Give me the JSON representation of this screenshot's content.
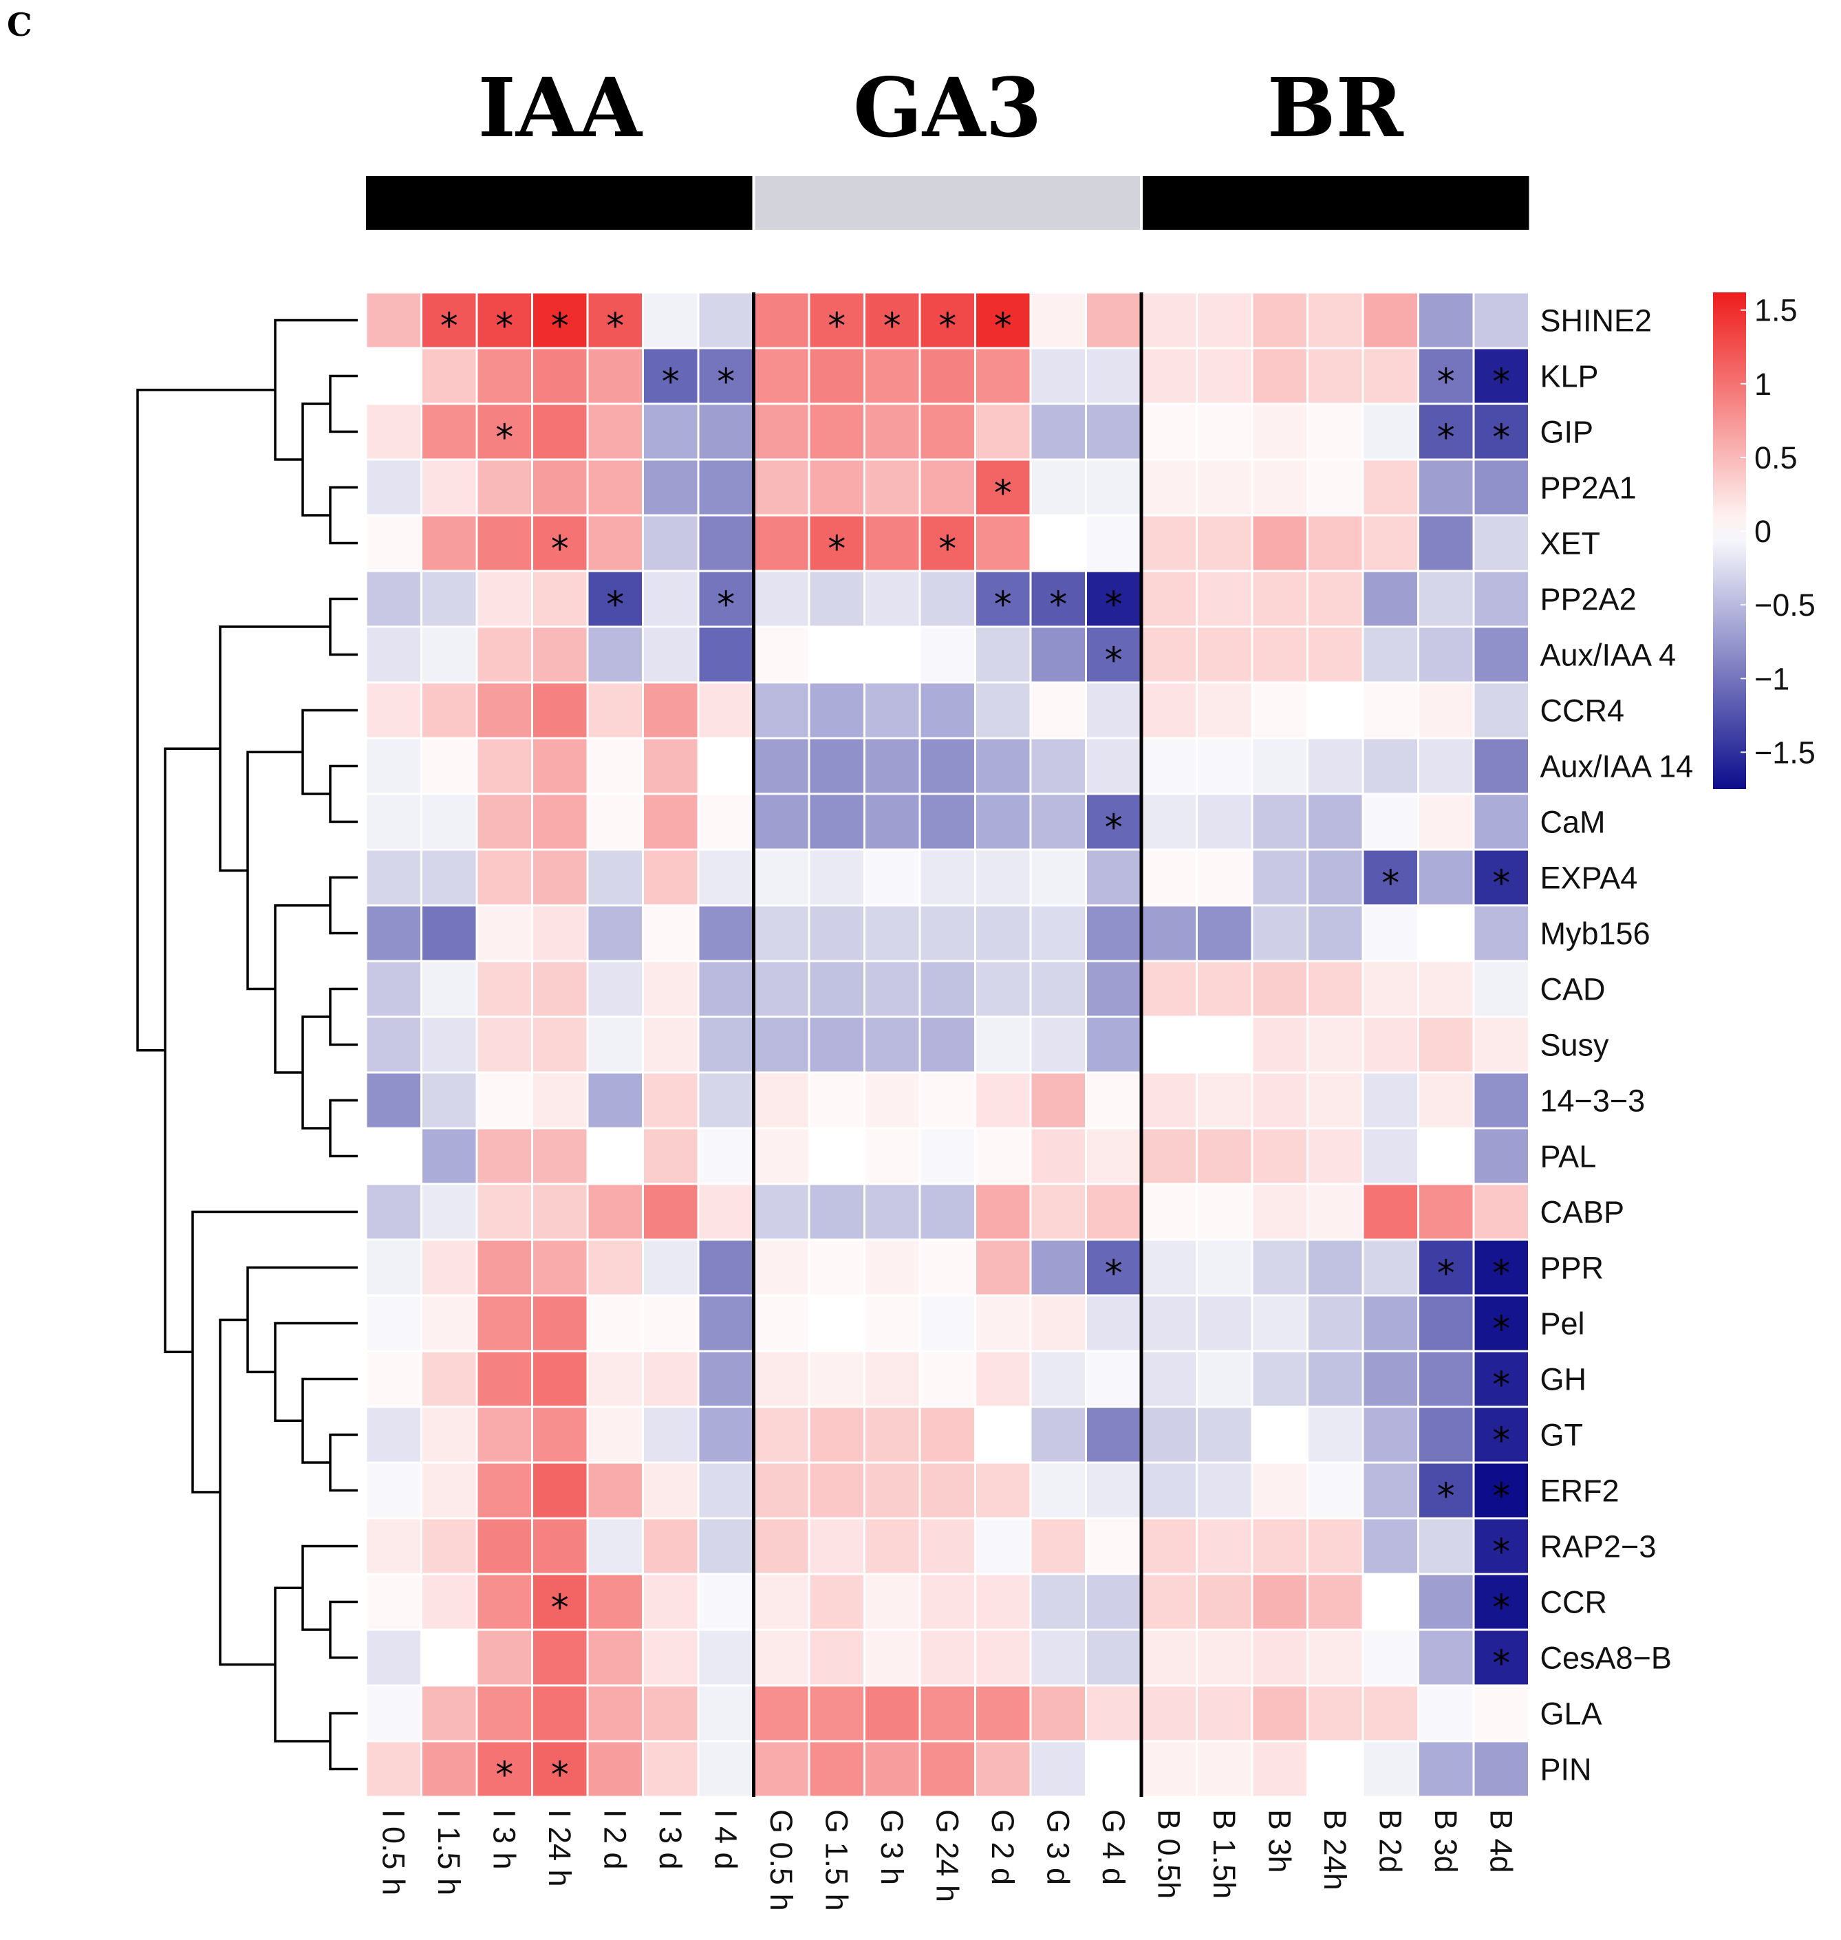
{
  "panel_label": "C",
  "chart_data": {
    "type": "heatmap",
    "title": "",
    "groups": [
      {
        "name": "IAA",
        "color": "#000000",
        "columns": 7
      },
      {
        "name": "GA3",
        "color": "#d3d3dc",
        "columns": 7
      },
      {
        "name": "BR",
        "color": "#000000",
        "columns": 7
      }
    ],
    "columns": [
      "I 0.5 h",
      "I 1.5 h",
      "I 3 h",
      "I 24 h",
      "I 2 d",
      "I 3 d",
      "I 4 d",
      "G 0.5 h",
      "G 1.5 h",
      "G 3 h",
      "G 24 h",
      "G 2 d",
      "G 3 d",
      "G 4 d",
      "B 0.5h",
      "B 1.5h",
      "B 3h",
      "B 24h",
      "B 2d",
      "B 3d",
      "B 4d"
    ],
    "rows": [
      "SHINE2",
      "KLP",
      "GIP",
      "PP2A1",
      "XET",
      "PP2A2",
      "Aux/IAA 4",
      "CCR4",
      "Aux/IAA 14",
      "CaM",
      "EXPA4",
      "Myb156",
      "CAD",
      "Susy",
      "14−3−3",
      "PAL",
      "CABP",
      "PPR",
      "Pel",
      "GH",
      "GT",
      "ERF2",
      "RAP2−3",
      "CCR",
      "CesA8−B",
      "GLA",
      "PIN"
    ],
    "values": [
      [
        0.5,
        1.2,
        1.3,
        1.5,
        1.2,
        -0.1,
        -0.3,
        0.9,
        1.1,
        1.2,
        1.3,
        1.5,
        0.1,
        0.5,
        0.2,
        0.2,
        0.4,
        0.3,
        0.6,
        -0.7,
        -0.4
      ],
      [
        0.0,
        0.4,
        0.8,
        0.9,
        0.7,
        -1.1,
        -1.0,
        0.8,
        0.9,
        0.8,
        0.9,
        0.8,
        -0.2,
        -0.2,
        0.2,
        0.2,
        0.4,
        0.3,
        0.3,
        -1.0,
        -1.6
      ],
      [
        0.2,
        0.8,
        0.9,
        1.0,
        0.6,
        -0.6,
        -0.7,
        0.7,
        0.8,
        0.7,
        0.8,
        0.4,
        -0.5,
        -0.5,
        0.05,
        0.05,
        0.1,
        0.05,
        -0.1,
        -1.2,
        -1.3
      ],
      [
        -0.2,
        0.2,
        0.5,
        0.7,
        0.6,
        -0.7,
        -0.8,
        0.5,
        0.6,
        0.5,
        0.6,
        1.1,
        -0.1,
        -0.1,
        0.1,
        0.1,
        0.1,
        0.05,
        0.3,
        -0.7,
        -0.8
      ],
      [
        0.05,
        0.7,
        0.9,
        1.0,
        0.6,
        -0.4,
        -0.9,
        0.9,
        1.1,
        0.9,
        1.1,
        0.8,
        0.0,
        -0.05,
        0.3,
        0.3,
        0.6,
        0.4,
        0.3,
        -0.9,
        -0.3
      ],
      [
        -0.4,
        -0.3,
        0.2,
        0.3,
        -1.3,
        -0.2,
        -1.0,
        -0.2,
        -0.3,
        -0.2,
        -0.3,
        -1.1,
        -1.2,
        -1.6,
        0.3,
        0.25,
        0.3,
        0.3,
        -0.7,
        -0.3,
        -0.5
      ],
      [
        -0.2,
        -0.1,
        0.4,
        0.5,
        -0.5,
        -0.2,
        -1.1,
        0.05,
        0.0,
        0.0,
        -0.05,
        -0.3,
        -0.8,
        -1.1,
        0.3,
        0.3,
        0.3,
        0.3,
        -0.3,
        -0.4,
        -0.8
      ],
      [
        0.2,
        0.4,
        0.7,
        0.9,
        0.3,
        0.7,
        0.2,
        -0.5,
        -0.6,
        -0.5,
        -0.6,
        -0.3,
        0.05,
        -0.2,
        0.2,
        0.15,
        0.05,
        0.0,
        0.05,
        0.1,
        -0.3
      ],
      [
        -0.1,
        0.05,
        0.4,
        0.6,
        0.05,
        0.5,
        0.0,
        -0.7,
        -0.8,
        -0.7,
        -0.8,
        -0.6,
        -0.4,
        -0.2,
        -0.05,
        -0.05,
        -0.1,
        -0.2,
        -0.3,
        -0.2,
        -0.9
      ],
      [
        -0.1,
        -0.1,
        0.5,
        0.6,
        0.05,
        0.6,
        0.05,
        -0.7,
        -0.8,
        -0.7,
        -0.8,
        -0.6,
        -0.5,
        -1.1,
        -0.15,
        -0.2,
        -0.4,
        -0.5,
        -0.05,
        0.1,
        -0.6
      ],
      [
        -0.3,
        -0.3,
        0.4,
        0.5,
        -0.3,
        0.4,
        -0.15,
        -0.1,
        -0.15,
        -0.05,
        -0.15,
        -0.15,
        -0.1,
        -0.5,
        0.05,
        0.05,
        -0.4,
        -0.5,
        -1.2,
        -0.6,
        -1.5
      ],
      [
        -0.8,
        -1.0,
        0.1,
        0.2,
        -0.5,
        0.05,
        -0.8,
        -0.3,
        -0.35,
        -0.3,
        -0.3,
        -0.3,
        -0.25,
        -0.8,
        -0.7,
        -0.8,
        -0.35,
        -0.45,
        -0.05,
        0.0,
        -0.5
      ],
      [
        -0.4,
        -0.1,
        0.3,
        0.35,
        -0.2,
        0.15,
        -0.5,
        -0.4,
        -0.45,
        -0.4,
        -0.45,
        -0.3,
        -0.3,
        -0.7,
        0.3,
        0.3,
        0.35,
        0.3,
        0.15,
        0.15,
        -0.1
      ],
      [
        -0.4,
        -0.2,
        0.25,
        0.3,
        -0.1,
        0.15,
        -0.45,
        -0.5,
        -0.55,
        -0.5,
        -0.55,
        -0.1,
        -0.2,
        -0.6,
        0.0,
        0.0,
        0.2,
        0.15,
        0.2,
        0.3,
        0.15
      ],
      [
        -0.8,
        -0.3,
        0.05,
        0.15,
        -0.6,
        0.3,
        -0.3,
        0.15,
        0.05,
        0.1,
        0.05,
        0.2,
        0.5,
        0.05,
        0.2,
        0.15,
        0.2,
        0.15,
        -0.2,
        0.15,
        -0.8
      ],
      [
        0.0,
        -0.6,
        0.5,
        0.5,
        0.0,
        0.35,
        -0.05,
        0.1,
        0.0,
        0.05,
        -0.05,
        0.05,
        0.25,
        0.15,
        0.35,
        0.35,
        0.3,
        0.2,
        -0.2,
        0.0,
        -0.7
      ],
      [
        -0.4,
        -0.15,
        0.3,
        0.35,
        0.6,
        0.9,
        0.2,
        -0.35,
        -0.45,
        -0.4,
        -0.45,
        0.6,
        0.3,
        0.4,
        0.05,
        0.05,
        0.15,
        0.1,
        1.0,
        0.8,
        0.4
      ],
      [
        -0.1,
        0.2,
        0.7,
        0.6,
        0.3,
        -0.15,
        -0.9,
        0.1,
        0.05,
        0.1,
        0.05,
        0.5,
        -0.7,
        -1.1,
        -0.15,
        -0.1,
        -0.3,
        -0.45,
        -0.3,
        -1.4,
        -1.7
      ],
      [
        -0.05,
        0.1,
        0.8,
        0.9,
        0.05,
        0.05,
        -0.8,
        0.05,
        0.0,
        0.05,
        -0.05,
        0.1,
        0.15,
        -0.2,
        -0.2,
        -0.2,
        -0.15,
        -0.35,
        -0.6,
        -1.0,
        -1.7
      ],
      [
        0.05,
        0.3,
        0.9,
        1.0,
        0.15,
        0.2,
        -0.7,
        0.15,
        0.1,
        0.15,
        0.05,
        0.2,
        -0.15,
        -0.05,
        -0.2,
        -0.1,
        -0.3,
        -0.45,
        -0.7,
        -0.9,
        -1.6
      ],
      [
        -0.2,
        0.15,
        0.6,
        0.8,
        0.1,
        -0.2,
        -0.6,
        0.3,
        0.4,
        0.35,
        0.4,
        0.0,
        -0.4,
        -0.9,
        -0.35,
        -0.3,
        0.0,
        -0.15,
        -0.55,
        -1.0,
        -1.6
      ],
      [
        -0.05,
        0.15,
        0.8,
        1.1,
        0.6,
        0.15,
        -0.25,
        0.35,
        0.4,
        0.35,
        0.35,
        0.3,
        -0.1,
        -0.15,
        -0.25,
        -0.2,
        0.1,
        -0.05,
        -0.5,
        -1.3,
        -1.9
      ],
      [
        0.15,
        0.3,
        0.9,
        0.9,
        -0.15,
        0.4,
        -0.3,
        0.35,
        0.2,
        0.3,
        0.25,
        -0.05,
        0.3,
        0.05,
        0.3,
        0.25,
        0.3,
        0.3,
        -0.5,
        -0.3,
        -1.6
      ],
      [
        0.05,
        0.2,
        0.8,
        1.1,
        0.8,
        0.2,
        -0.05,
        0.15,
        0.3,
        0.1,
        0.2,
        0.2,
        -0.3,
        -0.35,
        0.3,
        0.35,
        0.55,
        0.45,
        0.0,
        -0.7,
        -1.7
      ],
      [
        -0.2,
        0.0,
        0.55,
        1.0,
        0.6,
        0.2,
        -0.15,
        0.15,
        0.25,
        0.1,
        0.2,
        0.2,
        -0.2,
        -0.3,
        0.15,
        0.15,
        0.2,
        0.15,
        -0.05,
        -0.55,
        -1.6
      ],
      [
        -0.05,
        0.5,
        0.8,
        1.0,
        0.6,
        0.45,
        -0.1,
        0.8,
        0.8,
        0.9,
        0.8,
        0.8,
        0.5,
        0.25,
        0.25,
        0.25,
        0.45,
        0.3,
        0.3,
        -0.05,
        0.05
      ],
      [
        0.3,
        0.7,
        1.0,
        1.1,
        0.7,
        0.3,
        -0.1,
        0.6,
        0.8,
        0.7,
        0.8,
        0.5,
        -0.2,
        0.0,
        0.1,
        0.1,
        0.2,
        0.0,
        -0.1,
        -0.6,
        -0.7
      ]
    ],
    "significance_marker": "*",
    "significant": [
      [
        0,
        1
      ],
      [
        0,
        2
      ],
      [
        0,
        3
      ],
      [
        0,
        4
      ],
      [
        0,
        8
      ],
      [
        0,
        9
      ],
      [
        0,
        10
      ],
      [
        0,
        11
      ],
      [
        1,
        5
      ],
      [
        1,
        6
      ],
      [
        1,
        19
      ],
      [
        1,
        20
      ],
      [
        2,
        2
      ],
      [
        2,
        19
      ],
      [
        2,
        20
      ],
      [
        3,
        11
      ],
      [
        4,
        3
      ],
      [
        4,
        8
      ],
      [
        4,
        10
      ],
      [
        5,
        4
      ],
      [
        5,
        6
      ],
      [
        5,
        11
      ],
      [
        5,
        12
      ],
      [
        5,
        13
      ],
      [
        6,
        13
      ],
      [
        9,
        13
      ],
      [
        10,
        18
      ],
      [
        10,
        20
      ],
      [
        17,
        13
      ],
      [
        17,
        19
      ],
      [
        17,
        20
      ],
      [
        18,
        20
      ],
      [
        19,
        20
      ],
      [
        20,
        20
      ],
      [
        21,
        19
      ],
      [
        21,
        20
      ],
      [
        22,
        20
      ],
      [
        23,
        3
      ],
      [
        23,
        20
      ],
      [
        24,
        20
      ],
      [
        26,
        2
      ],
      [
        26,
        3
      ]
    ],
    "color_scale": {
      "min": -1.75,
      "max": 1.62,
      "low_color": "#0d0d8c",
      "mid_color": "#ffffff",
      "high_color": "#ee1c1c",
      "ticks": [
        1.5,
        1,
        0.5,
        0,
        -0.5,
        -1,
        -1.5
      ],
      "tick_labels": [
        "1.5",
        "1",
        "0.5",
        "0",
        "−0.5",
        "−1",
        "−1.5"
      ]
    },
    "legend_placement": "right",
    "dendrogram": "rows",
    "grid": true
  }
}
